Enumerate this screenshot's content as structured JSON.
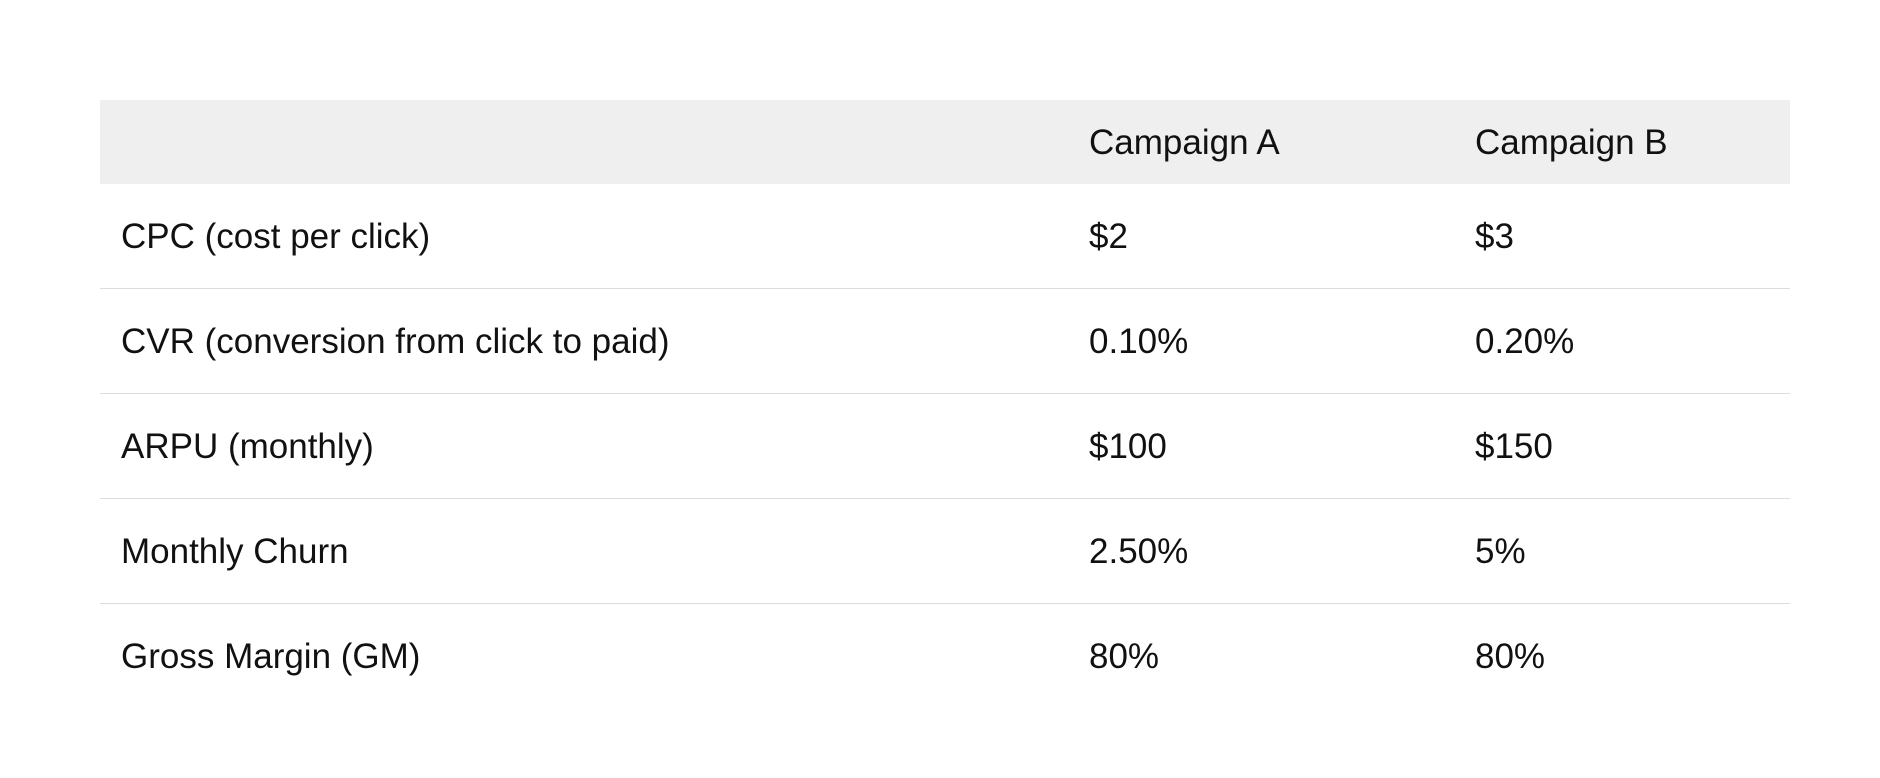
{
  "table": {
    "headers": [
      "",
      "Campaign A",
      "Campaign B"
    ],
    "rows": [
      [
        "CPC (cost per click)",
        "$2",
        "$3"
      ],
      [
        "CVR (conversion from click to paid)",
        "0.10%",
        "0.20%"
      ],
      [
        "ARPU (monthly)",
        "$100",
        "$150"
      ],
      [
        "Monthly Churn",
        "2.50%",
        "5%"
      ],
      [
        "Gross Margin (GM)",
        "80%",
        "80%"
      ]
    ]
  }
}
